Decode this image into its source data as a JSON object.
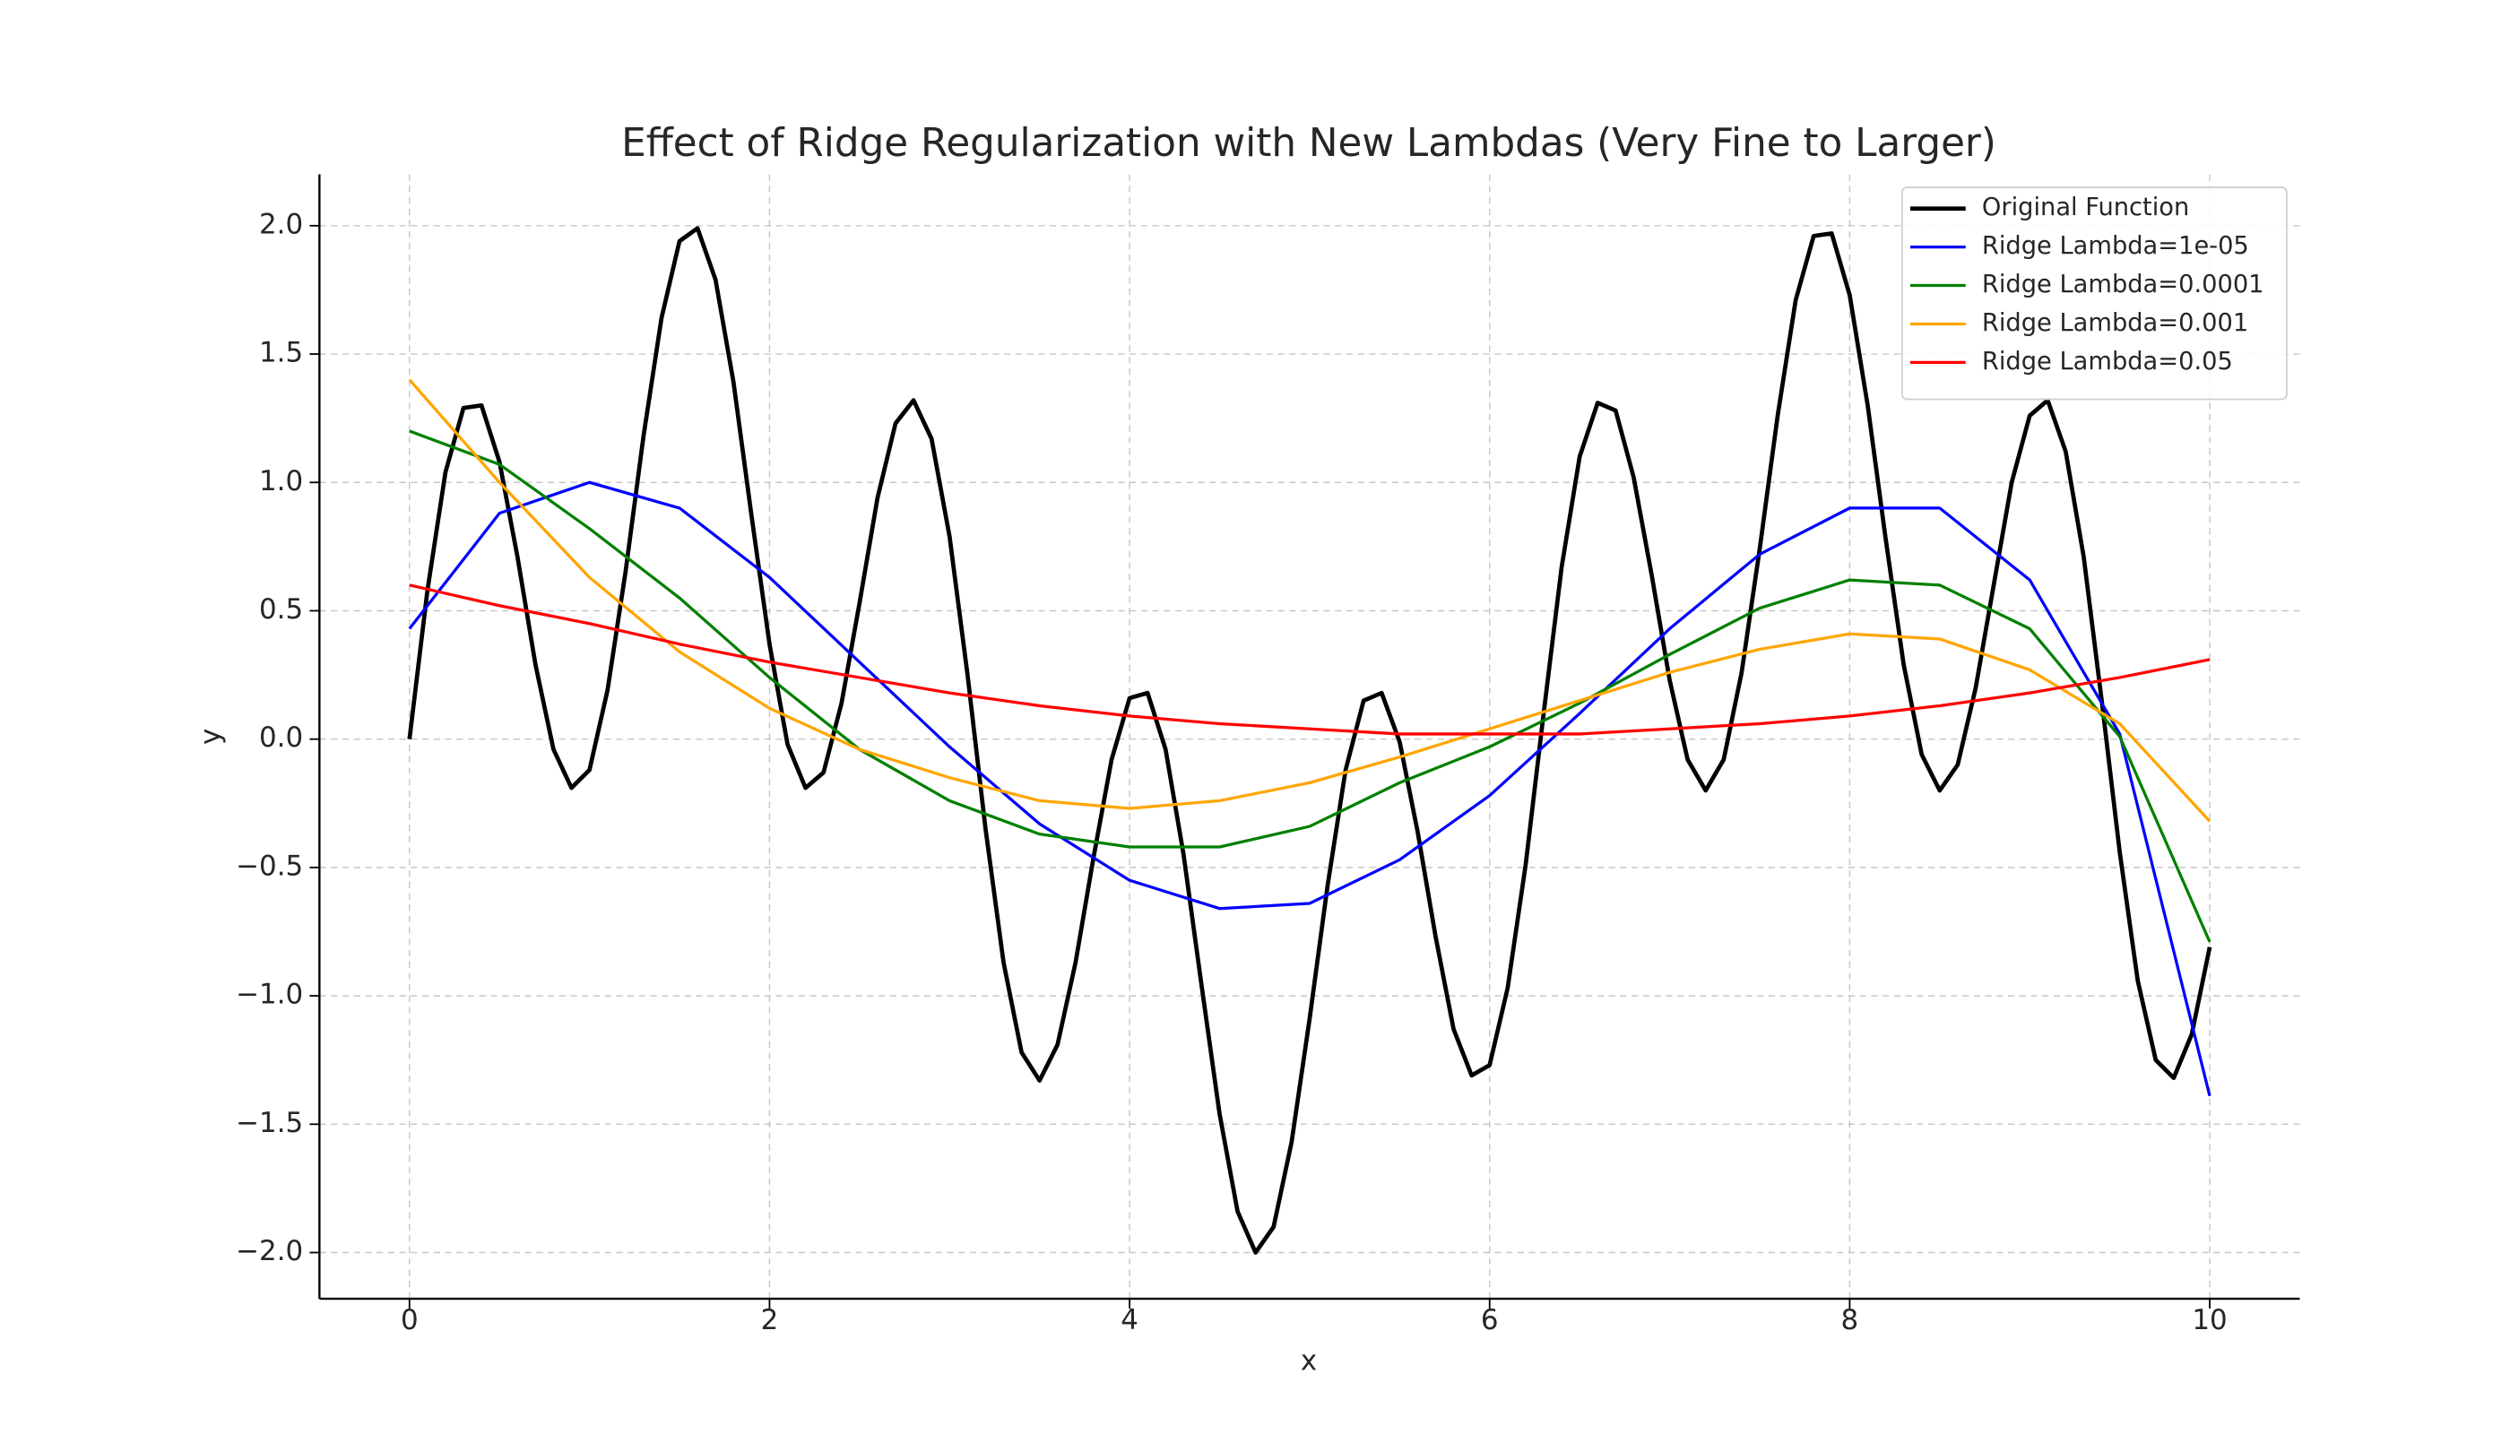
{
  "chart_data": {
    "type": "line",
    "title": "Effect of Ridge Regularization with New Lambdas (Very Fine to Larger)",
    "x_label": "x",
    "y_label": "y",
    "xlim": [
      -0.5,
      10.5
    ],
    "ylim": [
      -2.18,
      2.2
    ],
    "xticks": [
      0,
      2,
      4,
      6,
      8,
      10
    ],
    "yticks": [
      {
        "value": -2.0,
        "label": "−2.0"
      },
      {
        "value": -1.5,
        "label": "−1.5"
      },
      {
        "value": -1.0,
        "label": "−1.0"
      },
      {
        "value": -0.5,
        "label": "−0.5"
      },
      {
        "value": 0.0,
        "label": "0.0"
      },
      {
        "value": 0.5,
        "label": "0.5"
      },
      {
        "value": 1.0,
        "label": "1.0"
      },
      {
        "value": 1.5,
        "label": "1.5"
      },
      {
        "value": 2.0,
        "label": "2.0"
      }
    ],
    "grid": true,
    "legend": "upper right",
    "series": [
      {
        "name": "Original Function",
        "color": "#000000",
        "x": [
          0,
          0.1,
          0.2,
          0.3,
          0.4,
          0.5,
          0.6,
          0.7,
          0.8,
          0.9,
          1,
          1.1,
          1.2,
          1.3,
          1.4,
          1.5,
          1.6,
          1.7,
          1.8,
          1.9,
          2,
          2.1,
          2.2,
          2.3,
          2.4,
          2.5,
          2.6,
          2.7,
          2.8,
          2.9,
          3,
          3.1,
          3.2,
          3.3,
          3.4,
          3.5,
          3.6,
          3.7,
          3.8,
          3.9,
          4,
          4.1,
          4.2,
          4.3,
          4.4,
          4.5,
          4.6,
          4.7,
          4.8,
          4.9,
          5,
          5.1,
          5.2,
          5.3,
          5.4,
          5.5,
          5.6,
          5.7,
          5.8,
          5.9,
          6,
          6.1,
          6.2,
          6.3,
          6.4,
          6.5,
          6.6,
          6.7,
          6.8,
          6.9,
          7,
          7.1,
          7.2,
          7.3,
          7.4,
          7.5,
          7.6,
          7.7,
          7.8,
          7.9,
          8,
          8.1,
          8.2,
          8.3,
          8.4,
          8.5,
          8.6,
          8.7,
          8.8,
          8.9,
          9,
          9.1,
          9.2,
          9.3,
          9.4,
          9.5,
          9.6,
          9.7,
          9.8,
          9.9,
          10
        ],
        "values": [
          0,
          0.58,
          1.04,
          1.29,
          1.3,
          1.08,
          0.71,
          0.29,
          -0.04,
          -0.19,
          -0.12,
          0.19,
          0.65,
          1.18,
          1.64,
          1.94,
          1.99,
          1.79,
          1.39,
          0.87,
          0.37,
          -0.02,
          -0.19,
          -0.13,
          0.14,
          0.53,
          0.94,
          1.23,
          1.32,
          1.17,
          0.79,
          0.25,
          -0.35,
          -0.87,
          -1.22,
          -1.33,
          -1.19,
          -0.87,
          -0.46,
          -0.08,
          0.16,
          0.18,
          -0.04,
          -0.45,
          -0.96,
          -1.46,
          -1.84,
          -2.0,
          -1.9,
          -1.57,
          -1.09,
          -0.57,
          -0.12,
          0.15,
          0.18,
          -0.01,
          -0.36,
          -0.77,
          -1.13,
          -1.31,
          -1.27,
          -0.97,
          -0.49,
          0.1,
          0.67,
          1.1,
          1.31,
          1.28,
          1.02,
          0.64,
          0.23,
          -0.08,
          -0.2,
          -0.08,
          0.26,
          0.74,
          1.26,
          1.71,
          1.96,
          1.97,
          1.73,
          1.3,
          0.78,
          0.29,
          -0.06,
          -0.2,
          -0.1,
          0.2,
          0.6,
          1.0,
          1.26,
          1.32,
          1.12,
          0.71,
          0.15,
          -0.44,
          -0.94,
          -1.25,
          -1.32,
          -1.15,
          -0.81
        ]
      },
      {
        "name": "Ridge Lambda=1e-05",
        "color": "#0000ff",
        "x": [
          0,
          0.5,
          1,
          1.5,
          2,
          2.5,
          3,
          3.5,
          4,
          4.5,
          5,
          5.5,
          6,
          6.5,
          7,
          7.5,
          8,
          8.5,
          9,
          9.5,
          10
        ],
        "values": [
          0.43,
          0.88,
          1.0,
          0.9,
          0.63,
          0.3,
          -0.03,
          -0.33,
          -0.55,
          -0.66,
          -0.64,
          -0.47,
          -0.22,
          0.1,
          0.43,
          0.72,
          0.9,
          0.9,
          0.62,
          0.02,
          -1.39
        ]
      },
      {
        "name": "Ridge Lambda=0.0001",
        "color": "#008000",
        "x": [
          0,
          0.5,
          1,
          1.5,
          2,
          2.5,
          3,
          3.5,
          4,
          4.5,
          5,
          5.5,
          6,
          6.5,
          7,
          7.5,
          8,
          8.5,
          9,
          9.5,
          10
        ],
        "values": [
          1.2,
          1.07,
          0.82,
          0.55,
          0.24,
          -0.04,
          -0.24,
          -0.37,
          -0.42,
          -0.42,
          -0.34,
          -0.17,
          -0.03,
          0.14,
          0.33,
          0.51,
          0.62,
          0.6,
          0.43,
          0.01,
          -0.79
        ]
      },
      {
        "name": "Ridge Lambda=0.001",
        "color": "#ffa500",
        "x": [
          0,
          0.5,
          1,
          1.5,
          2,
          2.5,
          3,
          3.5,
          4,
          4.5,
          5,
          5.5,
          6,
          6.5,
          7,
          7.5,
          8,
          8.5,
          9,
          9.5,
          10
        ],
        "values": [
          1.4,
          1.0,
          0.63,
          0.34,
          0.12,
          -0.04,
          -0.15,
          -0.24,
          -0.27,
          -0.24,
          -0.17,
          -0.07,
          0.04,
          0.15,
          0.26,
          0.35,
          0.41,
          0.39,
          0.27,
          0.06,
          -0.32
        ]
      },
      {
        "name": "Ridge Lambda=0.05",
        "color": "#ff0000",
        "x": [
          0,
          0.5,
          1,
          1.5,
          2,
          2.5,
          3,
          3.5,
          4,
          4.5,
          5,
          5.5,
          6,
          6.5,
          7,
          7.5,
          8,
          8.5,
          9,
          9.5,
          10
        ],
        "values": [
          0.6,
          0.52,
          0.45,
          0.37,
          0.3,
          0.24,
          0.18,
          0.13,
          0.09,
          0.06,
          0.04,
          0.02,
          0.02,
          0.02,
          0.04,
          0.06,
          0.09,
          0.13,
          0.18,
          0.24,
          0.31
        ]
      }
    ]
  }
}
